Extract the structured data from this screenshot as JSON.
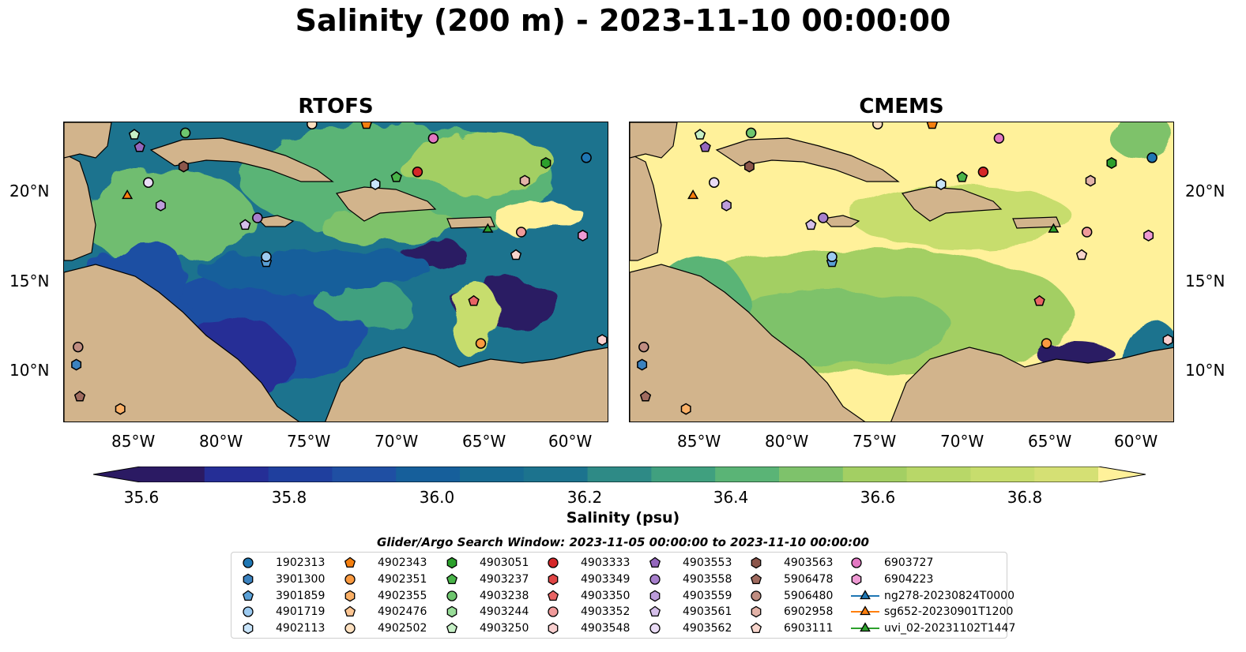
{
  "title": "Salinity (200 m) - 2023-11-10 00:00:00",
  "panels": [
    {
      "name": "RTOFS"
    },
    {
      "name": "CMEMS"
    }
  ],
  "axes": {
    "lon_ticks": [
      "85°W",
      "80°W",
      "75°W",
      "70°W",
      "65°W",
      "60°W"
    ],
    "lat_ticks": [
      "20°N",
      "15°N",
      "10°N"
    ]
  },
  "colorbar": {
    "label": "Salinity (psu)",
    "ticks": [
      "35.6",
      "35.8",
      "36.0",
      "36.2",
      "36.4",
      "36.6",
      "36.8"
    ],
    "range": [
      35.55,
      36.95
    ],
    "colors": [
      "#2b1a63",
      "#252e96",
      "#1f4fa3",
      "#165f9b",
      "#1c738e",
      "#2e8a86",
      "#40a07f",
      "#5ab476",
      "#7ec26b",
      "#a3cf63",
      "#c7dd6d",
      "#fff19a"
    ]
  },
  "search_window": "Glider/Argo Search Window: 2023-11-05 00:00:00 to 2023-11-10 00:00:00",
  "legend": [
    {
      "label": "1902313",
      "marker": "circle",
      "color": "#1f77b4"
    },
    {
      "label": "3901300",
      "marker": "hexagon",
      "color": "#3b82bf"
    },
    {
      "label": "3901859",
      "marker": "pentagon",
      "color": "#5aa0d6"
    },
    {
      "label": "4901719",
      "marker": "circle",
      "color": "#9ccaf0"
    },
    {
      "label": "4902113",
      "marker": "hexagon",
      "color": "#c8e4fa"
    },
    {
      "label": "4902343",
      "marker": "pentagon",
      "color": "#f57f0e"
    },
    {
      "label": "4902351",
      "marker": "circle",
      "color": "#fb9a40"
    },
    {
      "label": "4902355",
      "marker": "hexagon",
      "color": "#fbb066"
    },
    {
      "label": "4902476",
      "marker": "pentagon",
      "color": "#fcc592"
    },
    {
      "label": "4902502",
      "marker": "circle",
      "color": "#fde0bf"
    },
    {
      "label": "4903051",
      "marker": "hexagon",
      "color": "#2ca02c"
    },
    {
      "label": "4903237",
      "marker": "pentagon",
      "color": "#49b449"
    },
    {
      "label": "4903238",
      "marker": "circle",
      "color": "#6ec66e"
    },
    {
      "label": "4903244",
      "marker": "hexagon",
      "color": "#98dc98"
    },
    {
      "label": "4903250",
      "marker": "pentagon",
      "color": "#c6f0c6"
    },
    {
      "label": "4903333",
      "marker": "circle",
      "color": "#d62728"
    },
    {
      "label": "4903349",
      "marker": "hexagon",
      "color": "#e04545"
    },
    {
      "label": "4903350",
      "marker": "pentagon",
      "color": "#e86464"
    },
    {
      "label": "4903352",
      "marker": "circle",
      "color": "#f09a9a"
    },
    {
      "label": "4903548",
      "marker": "hexagon",
      "color": "#f8cfcf"
    },
    {
      "label": "4903553",
      "marker": "pentagon",
      "color": "#9467bd"
    },
    {
      "label": "4903558",
      "marker": "circle",
      "color": "#a77fcc"
    },
    {
      "label": "4903559",
      "marker": "hexagon",
      "color": "#bd9ddb"
    },
    {
      "label": "4903561",
      "marker": "pentagon",
      "color": "#d5bfea"
    },
    {
      "label": "4903562",
      "marker": "circle",
      "color": "#eadcf6"
    },
    {
      "label": "4903563",
      "marker": "hexagon",
      "color": "#8c564b"
    },
    {
      "label": "5906478",
      "marker": "pentagon",
      "color": "#a06b5f"
    },
    {
      "label": "5906480",
      "marker": "circle",
      "color": "#c08d81"
    },
    {
      "label": "6902958",
      "marker": "hexagon",
      "color": "#e3b3a8"
    },
    {
      "label": "6903111",
      "marker": "pentagon",
      "color": "#f7d5cc"
    },
    {
      "label": "6903727",
      "marker": "circle",
      "color": "#e377c2"
    },
    {
      "label": "6904223",
      "marker": "hexagon",
      "color": "#ef9ad4"
    },
    {
      "label": "ng278-20230824T0000",
      "marker": "triangle",
      "color": "#1f77b4"
    },
    {
      "label": "sg652-20230901T1200",
      "marker": "triangle",
      "color": "#ff7f0e"
    },
    {
      "label": "uvi_02-20231102T1447",
      "marker": "triangle",
      "color": "#2ca02c"
    }
  ],
  "map_extent": {
    "lon": [
      -89,
      -58
    ],
    "lat": [
      7,
      24
    ]
  },
  "platforms": [
    {
      "id": "1902313",
      "lon": -59.3,
      "lat": 22.0
    },
    {
      "id": "3901300",
      "lon": -88.3,
      "lat": 10.3
    },
    {
      "id": "3901859",
      "lon": -77.5,
      "lat": 16.1
    },
    {
      "id": "4901719",
      "lon": -77.5,
      "lat": 16.4
    },
    {
      "id": "4902113",
      "lon": -71.3,
      "lat": 20.5
    },
    {
      "id": "4902343",
      "lon": -71.8,
      "lat": 23.9
    },
    {
      "id": "4902502",
      "lon": -74.9,
      "lat": 23.9
    },
    {
      "id": "4903051",
      "lon": -61.6,
      "lat": 21.7
    },
    {
      "id": "4903237",
      "lon": -70.1,
      "lat": 20.9
    },
    {
      "id": "4903238",
      "lon": -82.1,
      "lat": 23.4
    },
    {
      "id": "4903250",
      "lon": -85.0,
      "lat": 23.3
    },
    {
      "id": "4903333",
      "lon": -68.9,
      "lat": 21.2
    },
    {
      "id": "4903350",
      "lon": -65.7,
      "lat": 13.9
    },
    {
      "id": "4903352",
      "lon": -63.0,
      "lat": 17.8
    },
    {
      "id": "4903548",
      "lon": -58.4,
      "lat": 11.7
    },
    {
      "id": "4903553",
      "lon": -84.7,
      "lat": 22.6
    },
    {
      "id": "4903558",
      "lon": -78.0,
      "lat": 18.6
    },
    {
      "id": "4903559",
      "lon": -83.5,
      "lat": 19.3
    },
    {
      "id": "4903561",
      "lon": -78.7,
      "lat": 18.2
    },
    {
      "id": "4903562",
      "lon": -84.2,
      "lat": 20.6
    },
    {
      "id": "4903563",
      "lon": -82.2,
      "lat": 21.5
    },
    {
      "id": "5906478",
      "lon": -88.1,
      "lat": 8.5
    },
    {
      "id": "5906480",
      "lon": -88.2,
      "lat": 11.3
    },
    {
      "id": "6902958",
      "lon": -62.8,
      "lat": 20.7
    },
    {
      "id": "6903111",
      "lon": -63.3,
      "lat": 16.5
    },
    {
      "id": "6903727",
      "lon": -68.0,
      "lat": 23.1
    },
    {
      "id": "6904223",
      "lon": -59.5,
      "lat": 17.6
    },
    {
      "id": "4902355",
      "lon": -85.8,
      "lat": 7.8
    },
    {
      "id": "4902351",
      "lon": -65.3,
      "lat": 11.5
    },
    {
      "id": "sg652-20230901T1200",
      "lon": -85.4,
      "lat": 19.9
    },
    {
      "id": "uvi_02-20231102T1447",
      "lon": -64.9,
      "lat": 18.0
    }
  ]
}
